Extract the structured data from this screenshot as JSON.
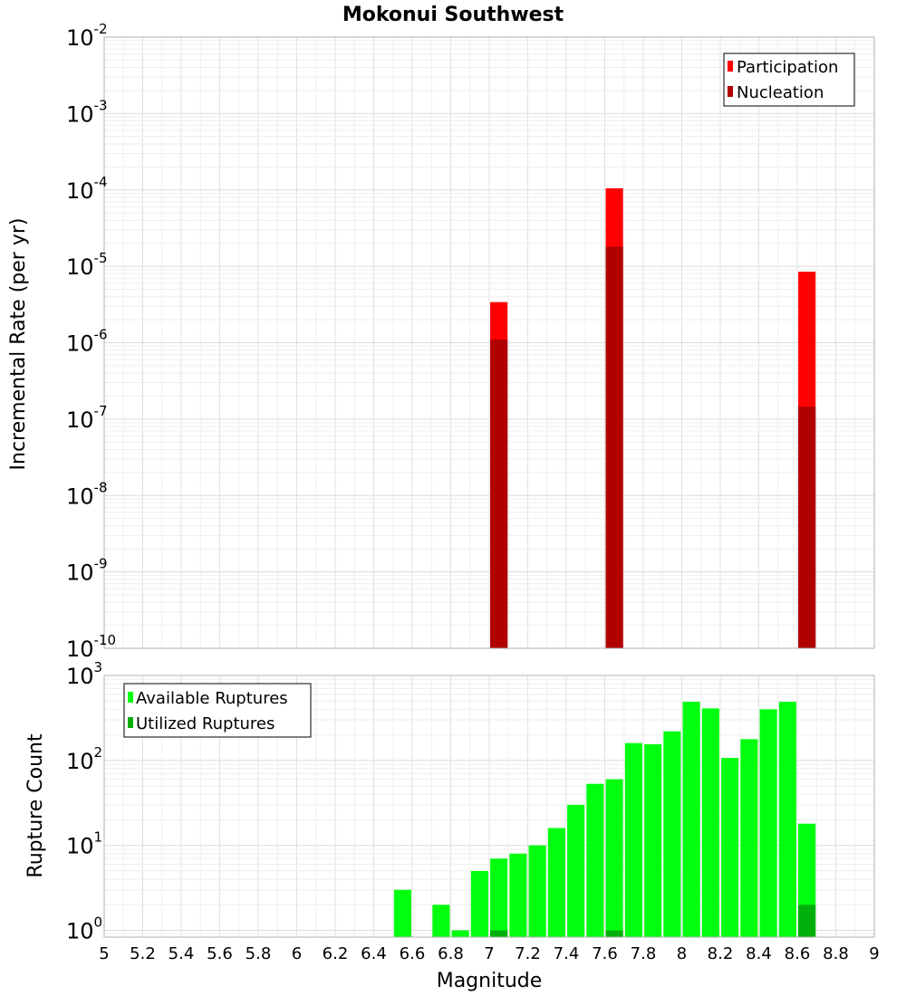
{
  "title": "Mokonui Southwest",
  "colors": {
    "participation": "#ff0000",
    "nucleation": "#b00000",
    "available": "#00ff0f",
    "utilized": "#00b00a",
    "grid": "#e6e6e6",
    "frame": "#b0b0b0"
  },
  "chart_data": [
    {
      "type": "bar",
      "name": "rate-chart",
      "xlabel": "Magnitude",
      "ylabel": "Incremental Rate (per yr)",
      "yscale": "log",
      "xlim": [
        5,
        9
      ],
      "ylim_exp": [
        -10,
        -2
      ],
      "y_tick_labels": [
        {
          "exp": -10,
          "base": "10",
          "power": "-10"
        },
        {
          "exp": -9,
          "base": "10",
          "power": "-9"
        },
        {
          "exp": -8,
          "base": "10",
          "power": "-8"
        },
        {
          "exp": -7,
          "base": "10",
          "power": "-7"
        },
        {
          "exp": -6,
          "base": "10",
          "power": "-6"
        },
        {
          "exp": -5,
          "base": "10",
          "power": "-5"
        },
        {
          "exp": -4,
          "base": "10",
          "power": "-4"
        },
        {
          "exp": -3,
          "base": "10",
          "power": "-3"
        },
        {
          "exp": -2,
          "base": "10",
          "power": "-2"
        }
      ],
      "bar_width": 0.09,
      "legend": {
        "position": "top-right",
        "entries": [
          "Participation",
          "Nucleation"
        ]
      },
      "series": [
        {
          "name": "Participation",
          "color_key": "participation",
          "x": [
            7.05,
            7.65,
            8.65
          ],
          "values": [
            3.4e-06,
            0.000105,
            8.5e-06
          ]
        },
        {
          "name": "Nucleation",
          "color_key": "nucleation",
          "x": [
            7.05,
            7.65,
            8.65
          ],
          "values": [
            1.1e-06,
            1.8e-05,
            1.45e-07
          ]
        }
      ]
    },
    {
      "type": "bar",
      "name": "count-chart",
      "xlabel": "Magnitude",
      "ylabel": "Rupture Count",
      "yscale": "log",
      "xlim": [
        5,
        9
      ],
      "ylim_exp": [
        -0.08,
        3
      ],
      "y_tick_labels": [
        {
          "exp": 0,
          "base": "10",
          "power": "0"
        },
        {
          "exp": 1,
          "base": "10",
          "power": "1"
        },
        {
          "exp": 2,
          "base": "10",
          "power": "2"
        },
        {
          "exp": 3,
          "base": "10",
          "power": "3"
        }
      ],
      "x_tick_labels": [
        "5",
        "5.2",
        "5.4",
        "5.6",
        "5.8",
        "6",
        "6.2",
        "6.4",
        "6.6",
        "6.8",
        "7",
        "7.2",
        "7.4",
        "7.6",
        "7.8",
        "8",
        "8.2",
        "8.4",
        "8.6",
        "8.8",
        "9"
      ],
      "bar_width": 0.09,
      "legend": {
        "position": "top-left",
        "entries": [
          "Available Ruptures",
          "Utilized Ruptures"
        ]
      },
      "series": [
        {
          "name": "Available Ruptures",
          "color_key": "available",
          "x": [
            6.55,
            6.75,
            6.85,
            6.95,
            7.05,
            7.15,
            7.25,
            7.35,
            7.45,
            7.55,
            7.65,
            7.75,
            7.85,
            7.95,
            8.05,
            8.15,
            8.25,
            8.35,
            8.45,
            8.55,
            8.65
          ],
          "values": [
            3,
            2,
            1,
            5,
            7,
            8,
            10,
            16,
            30,
            53,
            60,
            160,
            155,
            220,
            490,
            410,
            107,
            178,
            400,
            490,
            18
          ]
        },
        {
          "name": "Utilized Ruptures",
          "color_key": "utilized",
          "x": [
            7.05,
            7.65,
            8.65
          ],
          "values": [
            1,
            1,
            2
          ]
        }
      ]
    }
  ]
}
